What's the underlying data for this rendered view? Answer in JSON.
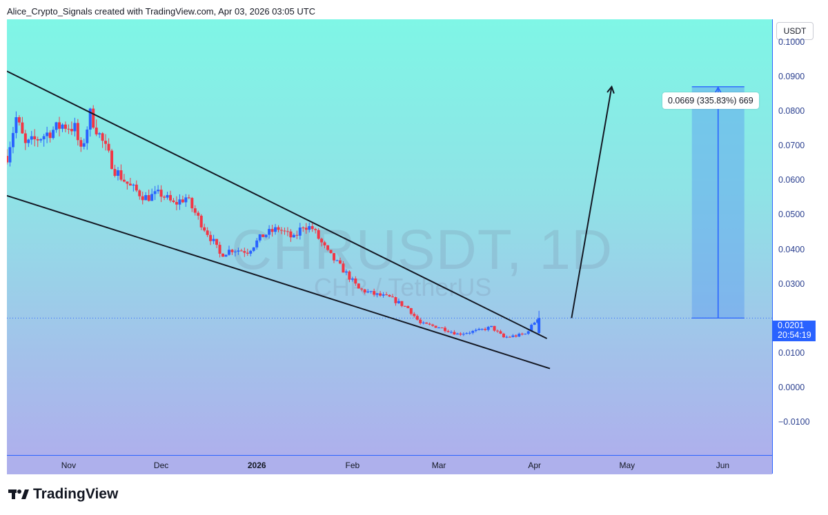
{
  "header": {
    "attribution": "Alice_Crypto_Signals created with TradingView.com, Apr 03, 2026 03:05 UTC"
  },
  "watermark": {
    "symbol": "CHRUSDT, 1D",
    "description": "CHR / TetherUS"
  },
  "price_axis": {
    "currency": "USDT",
    "last_price": "0.0201",
    "countdown": "20:54:19"
  },
  "projection": {
    "label": "0.0669 (335.83%) 669"
  },
  "footer": {
    "brand": "TradingView"
  },
  "colors": {
    "up_candle": "#2962ff",
    "down_candle": "#f23645",
    "trendline": "#131722",
    "projection_box": "#5b9cf0",
    "axis_line": "#2962ff"
  },
  "chart_data": {
    "type": "candlestick",
    "symbol": "CHRUSDT",
    "interval": "1D",
    "y_ticks": [
      "0.1000",
      "0.0900",
      "0.0800",
      "0.0700",
      "0.0600",
      "0.0500",
      "0.0400",
      "0.0300",
      "0.0100",
      "0.0000",
      "−0.0100"
    ],
    "y_tick_values": [
      0.1,
      0.09,
      0.08,
      0.07,
      0.06,
      0.05,
      0.04,
      0.03,
      0.01,
      0.0,
      -0.01
    ],
    "ylim": [
      -0.0195,
      0.1065
    ],
    "x_ticks": [
      "Nov",
      "Dec",
      "2026",
      "Feb",
      "Mar",
      "Apr",
      "May",
      "Jun"
    ],
    "x_tick_dates": [
      "2025-11-01",
      "2025-12-01",
      "2026-01-01",
      "2026-02-01",
      "2026-03-01",
      "2026-04-01",
      "2026-05-01",
      "2026-06-01"
    ],
    "x_bold_ticks": [
      "2026"
    ],
    "xlim": [
      "2025-10-12",
      "2026-06-17"
    ],
    "close_path": [
      [
        "2025-10-12",
        0.067
      ],
      [
        "2025-10-15",
        0.078
      ],
      [
        "2025-10-18",
        0.07
      ],
      [
        "2025-10-22",
        0.072
      ],
      [
        "2025-10-26",
        0.074
      ],
      [
        "2025-10-30",
        0.076
      ],
      [
        "2025-11-03",
        0.075
      ],
      [
        "2025-11-05",
        0.068
      ],
      [
        "2025-11-08",
        0.079
      ],
      [
        "2025-11-11",
        0.073
      ],
      [
        "2025-11-16",
        0.063
      ],
      [
        "2025-11-21",
        0.058
      ],
      [
        "2025-11-26",
        0.055
      ],
      [
        "2025-12-01",
        0.056
      ],
      [
        "2025-12-05",
        0.053
      ],
      [
        "2025-12-09",
        0.055
      ],
      [
        "2025-12-13",
        0.049
      ],
      [
        "2025-12-18",
        0.042
      ],
      [
        "2025-12-20",
        0.0385
      ],
      [
        "2025-12-24",
        0.04
      ],
      [
        "2025-12-29",
        0.0395
      ],
      [
        "2026-01-03",
        0.044
      ],
      [
        "2026-01-08",
        0.046
      ],
      [
        "2026-01-13",
        0.043
      ],
      [
        "2026-01-16",
        0.047
      ],
      [
        "2026-01-19",
        0.046
      ],
      [
        "2026-01-24",
        0.039
      ],
      [
        "2026-01-30",
        0.033
      ],
      [
        "2026-02-03",
        0.0285
      ],
      [
        "2026-02-08",
        0.027
      ],
      [
        "2026-02-13",
        0.026
      ],
      [
        "2026-02-19",
        0.023
      ],
      [
        "2026-02-23",
        0.0185
      ],
      [
        "2026-03-01",
        0.0175
      ],
      [
        "2026-03-07",
        0.0155
      ],
      [
        "2026-03-14",
        0.0165
      ],
      [
        "2026-03-18",
        0.0175
      ],
      [
        "2026-03-22",
        0.0145
      ],
      [
        "2026-03-26",
        0.015
      ],
      [
        "2026-03-29",
        0.0155
      ],
      [
        "2026-04-02",
        0.0201
      ]
    ],
    "trendlines": [
      {
        "name": "upper",
        "from": [
          "2025-10-12",
          0.0915
        ],
        "to": [
          "2026-04-05",
          0.0142
        ]
      },
      {
        "name": "lower",
        "from": [
          "2025-10-12",
          0.0555
        ],
        "to": [
          "2026-04-06",
          0.0055
        ]
      }
    ],
    "projection_arrow": {
      "from": [
        "2026-04-13",
        0.0201
      ],
      "to": [
        "2026-04-26",
        0.087
      ]
    },
    "target_range": {
      "start": "2026-05-22",
      "end": "2026-06-08",
      "low": 0.0201,
      "high": 0.087,
      "change": 0.0669,
      "change_pct": 335.83,
      "ticks": 669
    },
    "last_price": 0.0201
  }
}
